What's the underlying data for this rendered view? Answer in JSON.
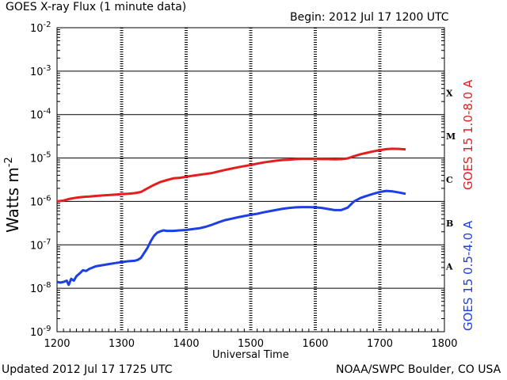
{
  "header": {
    "title": "GOES X-ray Flux (1 minute data)",
    "begin": "Begin: 2012 Jul 17 1200 UTC"
  },
  "footer": {
    "updated": "Updated 2012 Jul 17 1725 UTC",
    "source": "NOAA/SWPC Boulder, CO USA"
  },
  "chart_data": {
    "type": "line",
    "title": "GOES X-ray Flux (1 minute data)",
    "xlabel": "Universal Time",
    "ylabel": "Watts m",
    "ylabel_superscript": "-2",
    "yscale": "log",
    "xlim": [
      1200,
      1800
    ],
    "ylim": [
      1e-09,
      0.01
    ],
    "grid": true,
    "x_ticks": [
      "1200",
      "1300",
      "1400",
      "1500",
      "1600",
      "1700",
      "1800"
    ],
    "y_ticks": [
      {
        "base": "10",
        "exp": "-9",
        "value": 1e-09
      },
      {
        "base": "10",
        "exp": "-8",
        "value": 1e-08
      },
      {
        "base": "10",
        "exp": "-7",
        "value": 1e-07
      },
      {
        "base": "10",
        "exp": "-6",
        "value": 1e-06
      },
      {
        "base": "10",
        "exp": "-5",
        "value": 1e-05
      },
      {
        "base": "10",
        "exp": "-4",
        "value": 0.0001
      },
      {
        "base": "10",
        "exp": "-3",
        "value": 0.001
      },
      {
        "base": "10",
        "exp": "-2",
        "value": 0.01
      }
    ],
    "flare_classes": [
      {
        "label": "A",
        "lower": 1e-08
      },
      {
        "label": "B",
        "lower": 1e-07
      },
      {
        "label": "C",
        "lower": 1e-06
      },
      {
        "label": "M",
        "lower": 1e-05
      },
      {
        "label": "X",
        "lower": 0.0001
      }
    ],
    "series": [
      {
        "name": "GOES 15 1.0-8.0 A",
        "color": "#e41e1e",
        "x": [
          1200,
          1210,
          1220,
          1230,
          1240,
          1250,
          1260,
          1270,
          1280,
          1290,
          1300,
          1310,
          1320,
          1330,
          1340,
          1350,
          1360,
          1370,
          1380,
          1390,
          1400,
          1410,
          1420,
          1430,
          1440,
          1450,
          1460,
          1470,
          1480,
          1490,
          1500,
          1510,
          1520,
          1530,
          1540,
          1550,
          1560,
          1570,
          1580,
          1590,
          1600,
          1610,
          1620,
          1630,
          1640,
          1650,
          1660,
          1670,
          1680,
          1690,
          1700,
          1710,
          1720,
          1730,
          1740
        ],
        "y": [
          1e-06,
          1.05e-06,
          1.15e-06,
          1.22e-06,
          1.27e-06,
          1.3e-06,
          1.34e-06,
          1.37e-06,
          1.4e-06,
          1.43e-06,
          1.47e-06,
          1.5e-06,
          1.55e-06,
          1.65e-06,
          2e-06,
          2.4e-06,
          2.8e-06,
          3.1e-06,
          3.4e-06,
          3.5e-06,
          3.7e-06,
          3.9e-06,
          4.1e-06,
          4.3e-06,
          4.5e-06,
          4.9e-06,
          5.3e-06,
          5.7e-06,
          6.1e-06,
          6.5e-06,
          6.9e-06,
          7.4e-06,
          7.9e-06,
          8.3e-06,
          8.7e-06,
          9e-06,
          9.2e-06,
          9.4e-06,
          9.5e-06,
          9.5e-06,
          9.5e-06,
          9.4e-06,
          9.4e-06,
          9.3e-06,
          9.4e-06,
          9.8e-06,
          1.1e-05,
          1.22e-05,
          1.32e-05,
          1.42e-05,
          1.52e-05,
          1.6e-05,
          1.63e-05,
          1.62e-05,
          1.58e-05
        ]
      },
      {
        "name": "GOES 15 0.5-4.0 A",
        "color": "#1e3fe4",
        "x": [
          1200,
          1205,
          1210,
          1215,
          1218,
          1222,
          1226,
          1230,
          1235,
          1240,
          1245,
          1250,
          1255,
          1260,
          1270,
          1280,
          1290,
          1300,
          1310,
          1320,
          1325,
          1330,
          1335,
          1340,
          1345,
          1350,
          1355,
          1360,
          1365,
          1370,
          1380,
          1390,
          1400,
          1410,
          1420,
          1430,
          1440,
          1450,
          1460,
          1470,
          1480,
          1490,
          1500,
          1510,
          1520,
          1530,
          1540,
          1550,
          1560,
          1570,
          1580,
          1590,
          1600,
          1610,
          1620,
          1630,
          1640,
          1650,
          1660,
          1670,
          1680,
          1690,
          1700,
          1710,
          1720,
          1730,
          1740
        ],
        "y": [
          1.4e-08,
          1.35e-08,
          1.4e-08,
          1.5e-08,
          1.2e-08,
          1.65e-08,
          1.5e-08,
          1.9e-08,
          2.2e-08,
          2.6e-08,
          2.5e-08,
          2.8e-08,
          3e-08,
          3.2e-08,
          3.4e-08,
          3.6e-08,
          3.8e-08,
          4e-08,
          4.2e-08,
          4.3e-08,
          4.5e-08,
          5e-08,
          6.5e-08,
          8.5e-08,
          1.2e-07,
          1.6e-07,
          1.9e-07,
          2.05e-07,
          2.15e-07,
          2.1e-07,
          2.1e-07,
          2.15e-07,
          2.2e-07,
          2.3e-07,
          2.4e-07,
          2.6e-07,
          2.9e-07,
          3.3e-07,
          3.7e-07,
          4e-07,
          4.3e-07,
          4.6e-07,
          4.9e-07,
          5.2e-07,
          5.6e-07,
          6e-07,
          6.4e-07,
          6.8e-07,
          7.1e-07,
          7.3e-07,
          7.4e-07,
          7.4e-07,
          7.3e-07,
          7.1e-07,
          6.7e-07,
          6.3e-07,
          6.3e-07,
          7.2e-07,
          1e-06,
          1.2e-06,
          1.35e-06,
          1.5e-06,
          1.65e-06,
          1.75e-06,
          1.7e-06,
          1.6e-06,
          1.5e-06
        ]
      }
    ]
  }
}
